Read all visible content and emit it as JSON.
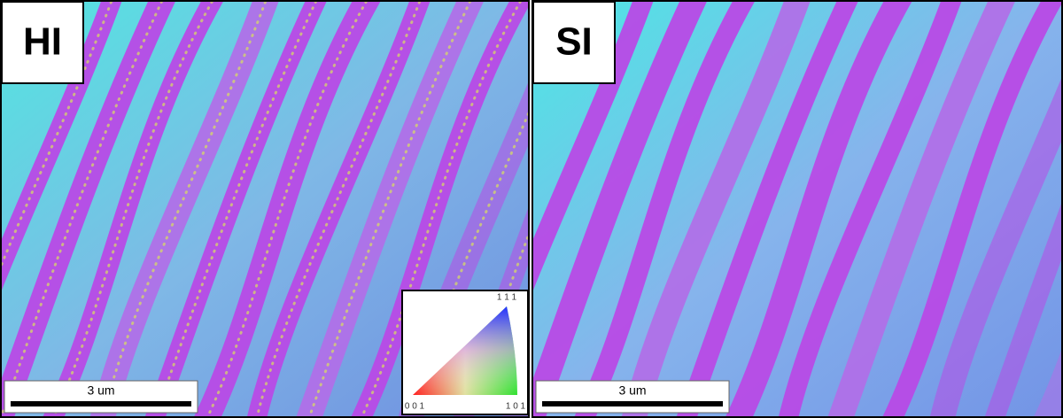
{
  "panels": [
    {
      "label": "HI",
      "scale_bar": "3 um"
    },
    {
      "label": "SI",
      "scale_bar": "3 um"
    }
  ],
  "legend": {
    "top": "1 1 1",
    "bottom_left": "0 0 1",
    "bottom_right": "1 0 1"
  }
}
